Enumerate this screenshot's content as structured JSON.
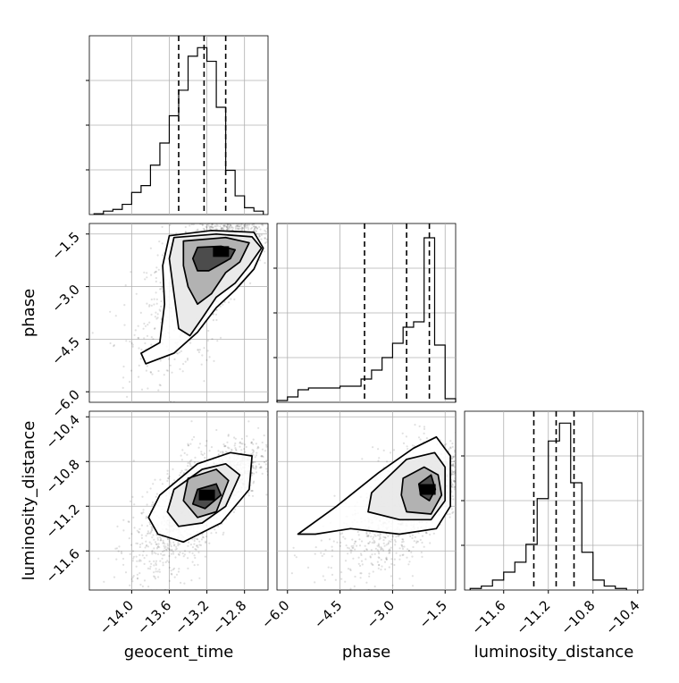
{
  "chart_data": [
    {
      "type": "histogram",
      "panel": "geocent_time",
      "x_range": [
        -14.45,
        -12.55
      ],
      "bin_edges": [
        -14.4,
        -14.3,
        -14.2,
        -14.1,
        -14.0,
        -13.9,
        -13.8,
        -13.7,
        -13.6,
        -13.5,
        -13.4,
        -13.3,
        -13.2,
        -13.1,
        -13.0,
        -12.9,
        -12.8,
        -12.7,
        -12.6
      ],
      "counts": [
        0.005,
        0.02,
        0.03,
        0.06,
        0.13,
        0.17,
        0.29,
        0.42,
        0.58,
        0.73,
        0.93,
        0.98,
        0.9,
        0.63,
        0.26,
        0.11,
        0.04,
        0.02
      ],
      "y_max": 1.05,
      "quantiles": [
        -13.5,
        -13.23,
        -13.0
      ],
      "x_ticks": [
        -14.0,
        -13.6,
        -13.2,
        -12.8
      ]
    },
    {
      "type": "histogram",
      "panel": "phase",
      "x_range": [
        -6.3,
        -1.2
      ],
      "bin_edges": [
        -6.3,
        -6.0,
        -5.7,
        -5.4,
        -5.1,
        -4.8,
        -4.5,
        -4.2,
        -3.9,
        -3.6,
        -3.3,
        -3.0,
        -2.7,
        -2.4,
        -2.1,
        -1.8,
        -1.5,
        -1.2
      ],
      "counts": [
        0.01,
        0.03,
        0.07,
        0.08,
        0.08,
        0.08,
        0.09,
        0.09,
        0.13,
        0.18,
        0.25,
        0.33,
        0.42,
        0.45,
        0.92,
        0.32,
        0.02
      ],
      "y_max": 1.0,
      "quantiles": [
        -3.8,
        -2.6,
        -1.95
      ],
      "x_ticks": [
        -6.0,
        -4.5,
        -3.0,
        -1.5
      ]
    },
    {
      "type": "histogram",
      "panel": "luminosity_distance",
      "x_range": [
        -11.95,
        -10.35
      ],
      "bin_edges": [
        -11.9,
        -11.8,
        -11.7,
        -11.6,
        -11.5,
        -11.4,
        -11.3,
        -11.2,
        -11.1,
        -11.0,
        -10.9,
        -10.8,
        -10.7,
        -10.6,
        -10.5
      ],
      "counts": [
        0.008,
        0.02,
        0.05,
        0.09,
        0.14,
        0.23,
        0.46,
        0.75,
        0.84,
        0.54,
        0.19,
        0.05,
        0.02,
        0.008
      ],
      "y_max": 0.9,
      "quantiles": [
        -11.33,
        -11.13,
        -10.97
      ],
      "x_ticks": [
        -11.6,
        -11.2,
        -10.8,
        -10.4
      ]
    },
    {
      "type": "scatter",
      "panel": "geocent_time vs phase",
      "x": "geocent_time",
      "y": "phase",
      "x_range": [
        -14.45,
        -12.55
      ],
      "y_range": [
        -6.3,
        -1.2
      ],
      "x_ticks": [
        -14.0,
        -13.6,
        -13.2,
        -12.8
      ],
      "y_ticks": [
        -1.5,
        -3.0,
        -4.5,
        -6.0
      ],
      "ylabel": "phase",
      "density_center": [
        -13.05,
        -2.0
      ],
      "contours": [
        [
          [
            -13.3,
            -1.88
          ],
          [
            -13.05,
            -1.85
          ],
          [
            -12.9,
            -1.95
          ],
          [
            -12.95,
            -2.2
          ],
          [
            -13.18,
            -2.55
          ],
          [
            -13.3,
            -2.55
          ],
          [
            -13.35,
            -2.2
          ],
          [
            -13.3,
            -1.88
          ]
        ],
        [
          [
            -13.45,
            -1.7
          ],
          [
            -13.0,
            -1.6
          ],
          [
            -12.75,
            -1.75
          ],
          [
            -12.85,
            -2.3
          ],
          [
            -13.0,
            -2.6
          ],
          [
            -13.15,
            -3.2
          ],
          [
            -13.3,
            -3.5
          ],
          [
            -13.4,
            -3.0
          ],
          [
            -13.45,
            -2.4
          ],
          [
            -13.45,
            -1.7
          ]
        ],
        [
          [
            -13.55,
            -1.6
          ],
          [
            -13.1,
            -1.5
          ],
          [
            -12.72,
            -1.58
          ],
          [
            -12.62,
            -1.9
          ],
          [
            -12.75,
            -2.4
          ],
          [
            -12.9,
            -2.9
          ],
          [
            -13.1,
            -3.3
          ],
          [
            -13.25,
            -3.9
          ],
          [
            -13.38,
            -4.4
          ],
          [
            -13.5,
            -4.2
          ],
          [
            -13.55,
            -3.2
          ],
          [
            -13.6,
            -2.2
          ],
          [
            -13.55,
            -1.6
          ]
        ],
        [
          [
            -13.6,
            -1.55
          ],
          [
            -13.15,
            -1.4
          ],
          [
            -12.7,
            -1.45
          ],
          [
            -12.6,
            -1.9
          ],
          [
            -12.7,
            -2.5
          ],
          [
            -12.9,
            -3.1
          ],
          [
            -13.1,
            -3.6
          ],
          [
            -13.3,
            -4.3
          ],
          [
            -13.55,
            -4.9
          ],
          [
            -13.85,
            -5.2
          ],
          [
            -13.9,
            -4.9
          ],
          [
            -13.7,
            -4.6
          ],
          [
            -13.65,
            -3.5
          ],
          [
            -13.67,
            -2.4
          ],
          [
            -13.6,
            -1.55
          ]
        ]
      ]
    },
    {
      "type": "scatter",
      "panel": "geocent_time vs luminosity_distance",
      "x": "geocent_time",
      "y": "luminosity_distance",
      "x_range": [
        -14.45,
        -12.55
      ],
      "y_range": [
        -11.95,
        -10.35
      ],
      "x_ticks": [
        -14.0,
        -13.6,
        -13.2,
        -12.8
      ],
      "y_ticks": [
        -10.4,
        -10.8,
        -11.2,
        -11.6
      ],
      "xlabel": "geocent_time",
      "ylabel": "luminosity_distance",
      "density_center": [
        -13.2,
        -11.1
      ],
      "contours": [
        [
          [
            -13.3,
            -11.05
          ],
          [
            -13.1,
            -11.0
          ],
          [
            -13.05,
            -11.1
          ],
          [
            -13.22,
            -11.22
          ],
          [
            -13.35,
            -11.18
          ],
          [
            -13.3,
            -11.05
          ]
        ],
        [
          [
            -13.4,
            -10.95
          ],
          [
            -13.1,
            -10.87
          ],
          [
            -12.97,
            -10.97
          ],
          [
            -13.1,
            -11.25
          ],
          [
            -13.3,
            -11.3
          ],
          [
            -13.45,
            -11.15
          ],
          [
            -13.4,
            -10.95
          ]
        ],
        [
          [
            -13.55,
            -11.05
          ],
          [
            -13.25,
            -10.87
          ],
          [
            -13.0,
            -10.82
          ],
          [
            -12.85,
            -10.92
          ],
          [
            -13.0,
            -11.2
          ],
          [
            -13.25,
            -11.35
          ],
          [
            -13.5,
            -11.38
          ],
          [
            -13.62,
            -11.25
          ],
          [
            -13.55,
            -11.05
          ]
        ],
        [
          [
            -13.7,
            -11.1
          ],
          [
            -13.3,
            -10.82
          ],
          [
            -12.95,
            -10.72
          ],
          [
            -12.72,
            -10.75
          ],
          [
            -12.75,
            -11.05
          ],
          [
            -13.05,
            -11.35
          ],
          [
            -13.45,
            -11.52
          ],
          [
            -13.72,
            -11.45
          ],
          [
            -13.82,
            -11.3
          ],
          [
            -13.7,
            -11.1
          ]
        ]
      ]
    },
    {
      "type": "scatter",
      "panel": "phase vs luminosity_distance",
      "x": "phase",
      "y": "luminosity_distance",
      "x_range": [
        -6.3,
        -1.2
      ],
      "y_range": [
        -11.95,
        -10.35
      ],
      "x_ticks": [
        -6.0,
        -4.5,
        -3.0,
        -1.5
      ],
      "y_ticks": [
        -10.4,
        -10.8,
        -11.2,
        -11.6
      ],
      "xlabel": "phase",
      "density_center": [
        -2.0,
        -11.05
      ],
      "contours": [
        [
          [
            -2.25,
            -11.0
          ],
          [
            -1.9,
            -10.92
          ],
          [
            -1.78,
            -11.05
          ],
          [
            -1.95,
            -11.15
          ],
          [
            -2.2,
            -11.1
          ],
          [
            -2.25,
            -11.0
          ]
        ],
        [
          [
            -2.7,
            -10.95
          ],
          [
            -2.1,
            -10.85
          ],
          [
            -1.7,
            -10.92
          ],
          [
            -1.6,
            -11.1
          ],
          [
            -1.9,
            -11.27
          ],
          [
            -2.6,
            -11.25
          ],
          [
            -2.75,
            -11.1
          ],
          [
            -2.7,
            -10.95
          ]
        ],
        [
          [
            -3.6,
            -11.08
          ],
          [
            -2.6,
            -10.78
          ],
          [
            -1.8,
            -10.72
          ],
          [
            -1.5,
            -10.85
          ],
          [
            -1.5,
            -11.15
          ],
          [
            -1.9,
            -11.32
          ],
          [
            -2.8,
            -11.32
          ],
          [
            -3.7,
            -11.25
          ],
          [
            -3.6,
            -11.08
          ]
        ],
        [
          [
            -5.7,
            -11.45
          ],
          [
            -4.6,
            -11.2
          ],
          [
            -3.4,
            -10.9
          ],
          [
            -2.4,
            -10.68
          ],
          [
            -1.75,
            -10.58
          ],
          [
            -1.35,
            -10.75
          ],
          [
            -1.35,
            -11.2
          ],
          [
            -1.75,
            -11.4
          ],
          [
            -2.8,
            -11.45
          ],
          [
            -4.2,
            -11.4
          ],
          [
            -5.2,
            -11.45
          ],
          [
            -5.7,
            -11.45
          ]
        ]
      ]
    }
  ]
}
